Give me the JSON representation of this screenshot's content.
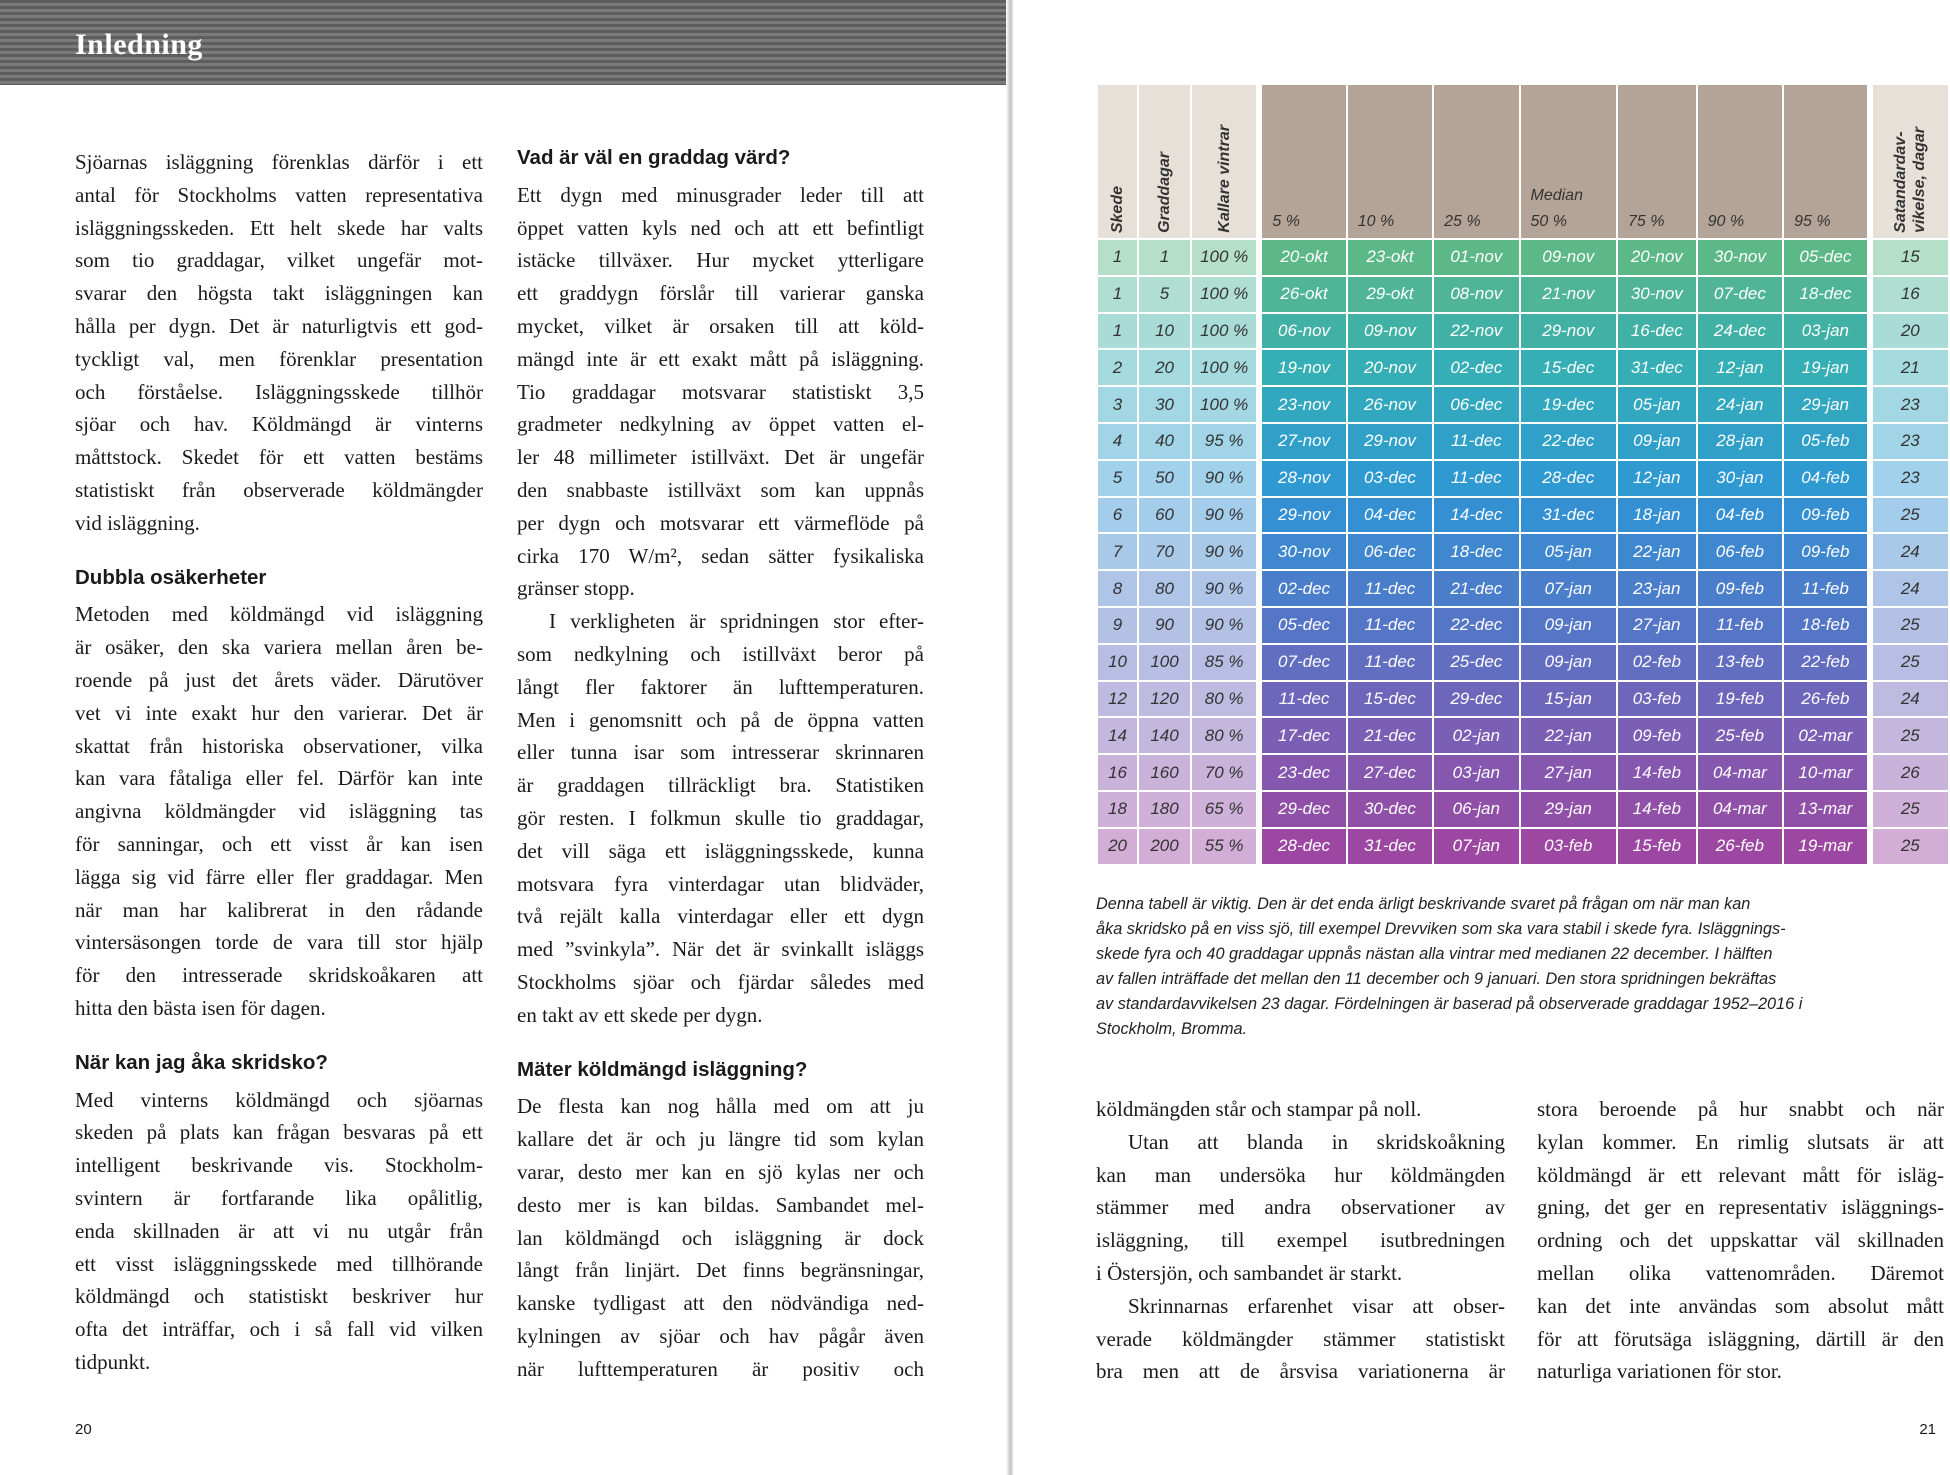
{
  "left_page": {
    "header": "Inledning",
    "columns": [
      [
        {
          "lines": [
            "Sjöarnas isläggning förenklas därför i ett",
            "antal för Stockholms vatten representativa",
            "isläggningsskeden. Ett helt skede har valts",
            "som tio graddagar, vilket ungefär mot-",
            "svarar den högsta takt isläggningen kan",
            "hålla per dygn. Det är naturligtvis ett god-",
            "tyckligt val, men förenklar presentation",
            "och förståelse. Isläggningsskede tillhör",
            "sjöar och hav. Köldmängd är vinterns",
            "måttstock. Skedet för ett vatten bestäms",
            "statistiskt från observerade köldmängder",
            "vid isläggning."
          ]
        },
        {
          "heading": "Dubbla osäkerheter"
        },
        {
          "lines": [
            "Metoden med köldmängd vid isläggning",
            "är osäker, den ska variera mellan åren be-",
            "roende på just det årets väder. Därutöver",
            "vet vi inte exakt hur den varierar. Det är",
            "skattat från historiska observationer, vilka",
            "kan vara fåtaliga eller fel. Därför kan inte",
            "angivna köldmängder vid isläggning tas",
            "för sanningar, och ett visst år kan isen",
            "lägga sig vid färre eller fler graddagar. Men",
            "när man har kalibrerat in den rådande",
            "vintersäsongen torde de vara till stor hjälp",
            "för den intresserade skridskoåkaren att",
            "hitta den bästa isen för dagen."
          ]
        },
        {
          "heading": "När kan jag åka skridsko?"
        },
        {
          "lines": [
            "Med vinterns köldmängd och sjöarnas",
            "skeden på plats kan frågan besvaras på ett",
            "intelligent beskrivande vis. Stockholm-",
            "svintern är fortfarande lika opålitlig,",
            "enda skillnaden är att vi nu utgår från",
            "ett visst isläggningsskede med tillhörande",
            "köldmängd och statistiskt beskriver hur",
            "ofta det inträffar, och i så fall vid vilken",
            "tidpunkt."
          ]
        }
      ],
      [
        {
          "heading": "Vad är väl en graddag värd?"
        },
        {
          "lines": [
            "Ett dygn med minusgrader leder till att",
            "öppet vatten kyls ned och att ett befintligt",
            "istäcke tillväxer. Hur mycket ytterligare",
            "ett graddygn förslår till varierar ganska",
            "mycket, vilket är orsaken till att köld-",
            "mängd inte är ett exakt mått på isläggning.",
            "Tio graddagar motsvarar statistiskt 3,5",
            "gradmeter nedkylning av öppet vatten el-",
            "ler 48 millimeter istillväxt. Det är ungefär",
            "den snabbaste istillväxt som kan uppnås",
            "per dygn och motsvarar ett värmeflöde på",
            "cirka 170 W/m², sedan sätter fysikaliska",
            "gränser stopp."
          ]
        },
        {
          "lines": [
            "I verkligheten är spridningen stor efter-",
            "som nedkylning och istillväxt beror på",
            "långt fler faktorer än lufttemperaturen.",
            "Men i genomsnitt och på de öppna vatten",
            "eller tunna isar som intresserar skrinnaren",
            "är graddagen tillräckligt bra. Statistiken",
            "gör resten. I folkmun skulle tio graddagar,",
            "det vill säga ett isläggningsskede, kunna",
            "motsvara fyra vinterdagar utan blidväder,",
            "två rejält kalla vinterdagar eller ett dygn",
            "med ”svinkyla”. När det är svinkallt isläggs",
            "Stockholms sjöar och fjärdar således med",
            "en takt av ett skede per dygn."
          ]
        },
        {
          "heading": "Mäter köldmängd isläggning?"
        },
        {
          "lines": [
            "De flesta kan nog hålla med om att ju",
            "kallare det är och ju längre tid som kylan",
            "varar, desto mer kan en sjö kylas ner och",
            "desto mer is kan bildas. Sambandet mel-",
            "lan köldmängd och isläggning är dock",
            "långt från linjärt. Det finns begränsningar,",
            "kanske tydligast att den nödvändiga ned-",
            "kylningen av sjöar och hav pågår även",
            "när lufttemperaturen är positiv och"
          ]
        }
      ]
    ],
    "page_number": "20"
  },
  "right_page": {
    "table": {
      "header": [
        [
          "Skede"
        ],
        [
          "Graddagar"
        ],
        [
          "Kallare vintrar"
        ],
        [
          "5 %"
        ],
        [
          "10 %"
        ],
        [
          "25 %"
        ],
        [
          "Median",
          "50 %"
        ],
        [
          "75 %"
        ],
        [
          "90 %"
        ],
        [
          "95 %"
        ],
        [
          "Satandardav-",
          "vikelse, dagar"
        ]
      ],
      "rows": [
        [
          1,
          1,
          "100 %",
          "20-okt",
          "23-okt",
          "01-nov",
          "09-nov",
          "20-nov",
          "30-nov",
          "05-dec",
          15
        ],
        [
          1,
          5,
          "100 %",
          "26-okt",
          "29-okt",
          "08-nov",
          "21-nov",
          "30-nov",
          "07-dec",
          "18-dec",
          16
        ],
        [
          1,
          10,
          "100 %",
          "06-nov",
          "09-nov",
          "22-nov",
          "29-nov",
          "16-dec",
          "24-dec",
          "03-jan",
          20
        ],
        [
          2,
          20,
          "100 %",
          "19-nov",
          "20-nov",
          "02-dec",
          "15-dec",
          "31-dec",
          "12-jan",
          "19-jan",
          21
        ],
        [
          3,
          30,
          "100 %",
          "23-nov",
          "26-nov",
          "06-dec",
          "19-dec",
          "05-jan",
          "24-jan",
          "29-jan",
          23
        ],
        [
          4,
          40,
          "95 %",
          "27-nov",
          "29-nov",
          "11-dec",
          "22-dec",
          "09-jan",
          "28-jan",
          "05-feb",
          23
        ],
        [
          5,
          50,
          "90 %",
          "28-nov",
          "03-dec",
          "11-dec",
          "28-dec",
          "12-jan",
          "30-jan",
          "04-feb",
          23
        ],
        [
          6,
          60,
          "90 %",
          "29-nov",
          "04-dec",
          "14-dec",
          "31-dec",
          "18-jan",
          "04-feb",
          "09-feb",
          25
        ],
        [
          7,
          70,
          "90 %",
          "30-nov",
          "06-dec",
          "18-dec",
          "05-jan",
          "22-jan",
          "06-feb",
          "09-feb",
          24
        ],
        [
          8,
          80,
          "90 %",
          "02-dec",
          "11-dec",
          "21-dec",
          "07-jan",
          "23-jan",
          "09-feb",
          "11-feb",
          24
        ],
        [
          9,
          90,
          "90 %",
          "05-dec",
          "11-dec",
          "22-dec",
          "09-jan",
          "27-jan",
          "11-feb",
          "18-feb",
          25
        ],
        [
          10,
          100,
          "85 %",
          "07-dec",
          "11-dec",
          "25-dec",
          "09-jan",
          "02-feb",
          "13-feb",
          "22-feb",
          25
        ],
        [
          12,
          120,
          "80 %",
          "11-dec",
          "15-dec",
          "29-dec",
          "15-jan",
          "03-feb",
          "19-feb",
          "26-feb",
          24
        ],
        [
          14,
          140,
          "80 %",
          "17-dec",
          "21-dec",
          "02-jan",
          "22-jan",
          "09-feb",
          "25-feb",
          "02-mar",
          25
        ],
        [
          16,
          160,
          "70 %",
          "23-dec",
          "27-dec",
          "03-jan",
          "27-jan",
          "14-feb",
          "04-mar",
          "10-mar",
          26
        ],
        [
          18,
          180,
          "65 %",
          "29-dec",
          "30-dec",
          "06-jan",
          "29-jan",
          "14-feb",
          "04-mar",
          "13-mar",
          25
        ],
        [
          20,
          200,
          "55 %",
          "28-dec",
          "31-dec",
          "07-jan",
          "03-feb",
          "15-feb",
          "26-feb",
          "19-mar",
          25
        ]
      ]
    },
    "caption": [
      "Denna tabell är viktig. Den är det enda ärligt beskrivande svaret på frågan om när man kan",
      "åka skridsko på en viss sjö, till exempel Drevviken som ska vara stabil i skede fyra. Isläggnings-",
      "skede fyra och 40 graddagar uppnås nästan alla vintrar med medianen 22 december. I hälften",
      "av fallen inträffade det mellan den 11 december och 9 januari. Den stora spridningen bekräftas",
      "av standardavvikelsen 23 dagar. Fördelningen är baserad på observerade graddagar 1952–2016 i",
      "Stockholm, Bromma."
    ],
    "columns": [
      [
        {
          "lines": [
            "köldmängden står och stampar på noll."
          ]
        },
        {
          "lines": [
            "Utan att blanda in skridskoåkning",
            "kan man undersöka hur köldmängden",
            "stämmer med andra observationer av",
            "isläggning, till exempel isutbredningen",
            "i Östersjön, och sambandet är starkt."
          ]
        },
        {
          "lines": [
            "Skrinnarnas erfarenhet visar att obser-",
            "verade köldmängder stämmer statistiskt",
            "bra men att de årsvisa variationerna är"
          ]
        }
      ],
      [
        {
          "lines": [
            "stora beroende på hur snabbt och när",
            "kylan kommer. En rimlig slutsats är att",
            "köldmängd är ett relevant mått för isläg-",
            "gning, det ger en representativ isläggnings-",
            "ordning och det uppskattar väl skillnaden",
            "mellan olika vattenområden. Däremot",
            "kan det inte användas som absolut mått",
            "för att förutsäga isläggning, därtill är den",
            "naturliga variationen för stor."
          ]
        }
      ]
    ],
    "page_number": "21"
  }
}
